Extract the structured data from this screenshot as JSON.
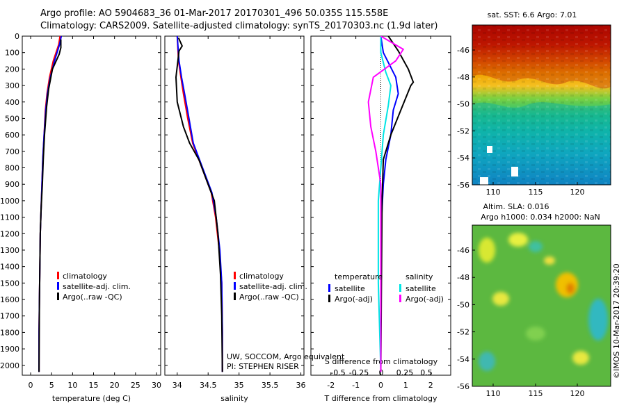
{
  "header": {
    "title_line1": "Argo profile: AO 5904683_36 01-Mar-2017 20170301_496 50.035S 115.558E",
    "title_line2": "Climatology: CARS2009. Satellite-adjusted climatology: synTS_20170303.nc (1.9d later)"
  },
  "colors": {
    "climatology": "#ff0000",
    "satellite": "#0000ff",
    "argo": "#000000",
    "salinity_sat": "#00e5e5",
    "argo_adj": "#ff00ff"
  },
  "chart_data": [
    {
      "id": "temperature",
      "type": "line",
      "xlabel": "temperature (deg C)",
      "xticks": [
        0,
        5,
        10,
        15,
        20,
        25,
        30
      ],
      "xlim": [
        -2,
        31
      ],
      "ylim": [
        2060,
        0
      ],
      "yticks": [
        0,
        100,
        200,
        300,
        400,
        500,
        600,
        700,
        800,
        900,
        1000,
        1100,
        1200,
        1300,
        1400,
        1500,
        1600,
        1700,
        1800,
        1900,
        2000
      ],
      "legend": [
        "climatology",
        "satellite-adj. clim.",
        "Argo(..raw -QC)"
      ],
      "series": [
        {
          "name": "climatology",
          "color": "#ff0000",
          "x": [
            7.0,
            6.7,
            5.4,
            4.5,
            3.9,
            3.5,
            3.2,
            2.9,
            2.7,
            2.5,
            2.3,
            2.2,
            2.1,
            2.0,
            2.0
          ],
          "y": [
            0,
            50,
            150,
            250,
            350,
            450,
            600,
            750,
            900,
            1050,
            1200,
            1400,
            1600,
            1800,
            2040
          ]
        },
        {
          "name": "satellite-adj. clim.",
          "color": "#0000ff",
          "x": [
            7.3,
            6.9,
            5.7,
            4.7,
            4.0,
            3.6,
            3.2,
            2.9,
            2.7,
            2.5,
            2.3,
            2.2,
            2.1,
            2.0,
            2.0
          ],
          "y": [
            0,
            50,
            150,
            250,
            350,
            450,
            600,
            750,
            900,
            1050,
            1200,
            1400,
            1600,
            1800,
            2040
          ]
        },
        {
          "name": "Argo(..raw -QC)",
          "color": "#000000",
          "x": [
            7.2,
            7.2,
            6.8,
            5.2,
            4.3,
            3.8,
            3.3,
            3.0,
            2.8,
            2.5,
            2.3,
            2.2,
            2.1,
            2.05,
            2.0
          ],
          "y": [
            20,
            70,
            110,
            200,
            320,
            430,
            600,
            750,
            900,
            1050,
            1200,
            1400,
            1600,
            1800,
            2040
          ]
        }
      ]
    },
    {
      "id": "salinity",
      "type": "line",
      "xlabel": "salinity",
      "xticks": [
        34,
        34.5,
        35,
        35.5,
        36
      ],
      "xlim": [
        33.8,
        36.05
      ],
      "ylim": [
        2060,
        0
      ],
      "legend": [
        "climatology",
        "satellite-adj. clim.",
        "Argo(..raw -QC)"
      ],
      "annotation_line1": "UW, SOCCOM, Argo equivalent",
      "annotation_line2": "PI: STEPHEN RISER",
      "series": [
        {
          "name": "climatology",
          "color": "#ff0000",
          "x": [
            34.0,
            34.02,
            34.06,
            34.1,
            34.17,
            34.25,
            34.35,
            34.45,
            34.55,
            34.62,
            34.68,
            34.72,
            34.73,
            34.73
          ],
          "y": [
            0,
            150,
            250,
            350,
            500,
            650,
            750,
            850,
            950,
            1100,
            1300,
            1500,
            1800,
            2040
          ]
        },
        {
          "name": "satellite-adj. clim.",
          "color": "#0000ff",
          "x": [
            34.0,
            34.03,
            34.07,
            34.12,
            34.19,
            34.26,
            34.36,
            34.46,
            34.56,
            34.63,
            34.69,
            34.72,
            34.73,
            34.73
          ],
          "y": [
            0,
            150,
            250,
            350,
            500,
            650,
            750,
            850,
            950,
            1100,
            1300,
            1500,
            1800,
            2040
          ]
        },
        {
          "name": "Argo(..raw -QC)",
          "color": "#000000",
          "x": [
            34.02,
            34.08,
            34.03,
            33.98,
            34.0,
            34.1,
            34.2,
            34.35,
            34.48,
            34.6,
            34.66,
            34.7,
            34.72,
            34.73
          ],
          "y": [
            10,
            60,
            90,
            250,
            400,
            550,
            650,
            750,
            880,
            1000,
            1200,
            1450,
            1700,
            2040
          ]
        }
      ]
    },
    {
      "id": "difference",
      "type": "line",
      "xlabel": "T difference from climatology",
      "xticks": [
        -2,
        -1,
        0,
        1,
        2
      ],
      "xlim": [
        -2.8,
        2.8
      ],
      "s_label": "S difference from climatology",
      "s_ticks": [
        "-0.5",
        "-0.25",
        "0",
        "0.25",
        "0.5"
      ],
      "ylim": [
        2060,
        0
      ],
      "legend_temperature_title": "temperature",
      "legend_salinity_title": "salinity",
      "legend_temperature": [
        "satellite",
        "Argo(-adj)"
      ],
      "legend_salinity": [
        "satellite",
        "Argo(-adj)"
      ],
      "series": [
        {
          "name": "temperature satellite",
          "color": "#0000ff",
          "x": [
            0.0,
            0.1,
            0.6,
            0.7,
            0.5,
            0.4,
            0.2,
            0.1,
            0.0,
            0.0,
            0.0
          ],
          "y": [
            0,
            100,
            250,
            350,
            450,
            600,
            750,
            900,
            1200,
            1600,
            2040
          ]
        },
        {
          "name": "temperature Argo(-adj)",
          "color": "#000000",
          "x": [
            0.3,
            0.7,
            1.1,
            1.3,
            1.2,
            0.8,
            0.4,
            0.1,
            0.05,
            0.02,
            0.0
          ],
          "y": [
            0,
            90,
            200,
            280,
            300,
            450,
            600,
            750,
            1000,
            1600,
            2040
          ]
        },
        {
          "name": "salinity satellite",
          "color": "#00e5e5",
          "x": [
            0.0,
            0.0,
            0.2,
            0.4,
            0.3,
            0.1,
            0.0,
            -0.1,
            -0.1,
            0.0
          ],
          "y": [
            0,
            100,
            220,
            300,
            420,
            600,
            800,
            1000,
            1500,
            2040
          ]
        },
        {
          "name": "salinity Argo(-adj)",
          "color": "#ff00ff",
          "x": [
            0.0,
            0.9,
            0.6,
            -0.3,
            -0.5,
            -0.4,
            -0.2,
            0.0,
            0.0
          ],
          "y": [
            0,
            80,
            150,
            250,
            400,
            550,
            700,
            900,
            2040
          ]
        }
      ]
    },
    {
      "id": "sst_map",
      "type": "heatmap",
      "title": "sat. SST: 6.6 Argo: 7.01",
      "xticks": [
        "110",
        "115",
        "120"
      ],
      "yticks": [
        "-46",
        "-48",
        "-50",
        "-52",
        "-54",
        "-56"
      ]
    },
    {
      "id": "sla_map",
      "type": "heatmap",
      "title_line1": "Altim. SLA: 0.016",
      "title_line2": "Argo h1000: 0.034 h2000: NaN",
      "xticks": [
        "110",
        "115",
        "120"
      ],
      "yticks": [
        "-46",
        "-48",
        "-50",
        "-52",
        "-54",
        "-56"
      ],
      "watermark": "©IMOS 10-Mar-2017 20:39:20"
    }
  ]
}
